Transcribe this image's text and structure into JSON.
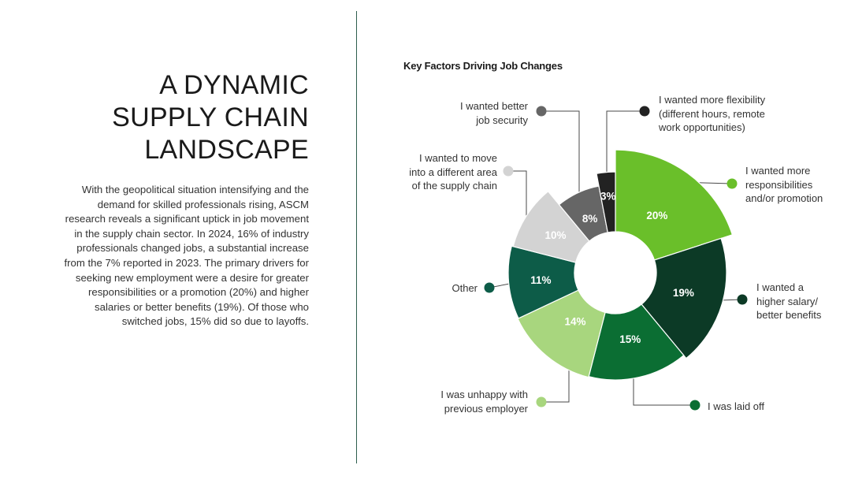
{
  "headline": [
    "A DYNAMIC",
    "SUPPLY CHAIN",
    "LANDSCAPE"
  ],
  "body_text": "With the geopolitical situation intensifying and the demand for skilled professionals rising, ASCM research reveals a significant uptick in job movement in the supply chain sector. In 2024, 16% of industry professionals changed jobs, a substantial increase from the 7% reported in 2023. The primary drivers for seeking new employment were a desire for greater responsibilities or a promotion (20%) and higher salaries or better benefits (19%). Of those who switched jobs, 15% did so due to layoffs.",
  "chart_data": {
    "type": "pie",
    "title": "Key Factors Driving Job Changes",
    "slices": [
      {
        "label": "I wanted more responsibilities and/or promotion",
        "lines": [
          "I wanted more",
          "responsibilities",
          "and/or promotion"
        ],
        "value": 20,
        "value_label": "20%",
        "color": "#6abf2a",
        "text_color": "#ffffff"
      },
      {
        "label": "I wanted a higher salary/ better benefits",
        "lines": [
          "I wanted a",
          "higher salary/",
          "better benefits"
        ],
        "value": 19,
        "value_label": "19%",
        "color": "#0c3a26",
        "text_color": "#ffffff"
      },
      {
        "label": "I was laid off",
        "lines": [
          "I was laid off"
        ],
        "value": 15,
        "value_label": "15%",
        "color": "#0b6e33",
        "text_color": "#ffffff"
      },
      {
        "label": "I was unhappy with previous employer",
        "lines": [
          "I was unhappy with",
          "previous employer"
        ],
        "value": 14,
        "value_label": "14%",
        "color": "#a8d67e",
        "text_color": "#ffffff"
      },
      {
        "label": "Other",
        "lines": [
          "Other"
        ],
        "value": 11,
        "value_label": "11%",
        "color": "#0d5c48",
        "text_color": "#ffffff"
      },
      {
        "label": "I wanted to move into a different area of the supply chain",
        "lines": [
          "I wanted to move",
          "into a different area",
          "of the supply chain"
        ],
        "value": 10,
        "value_label": "10%",
        "color": "#d3d3d3",
        "text_color": "#ffffff"
      },
      {
        "label": "I wanted better job security",
        "lines": [
          "I wanted better",
          "job security"
        ],
        "value": 8,
        "value_label": "8%",
        "color": "#666666",
        "text_color": "#ffffff"
      },
      {
        "label": "I wanted more flexibility (different hours, remote work opportunities)",
        "lines": [
          "I wanted more flexibility",
          "(different hours, remote",
          "work opportunities)"
        ],
        "value": 3,
        "value_label": "3%",
        "color": "#222222",
        "text_color": "#ffffff"
      }
    ]
  }
}
